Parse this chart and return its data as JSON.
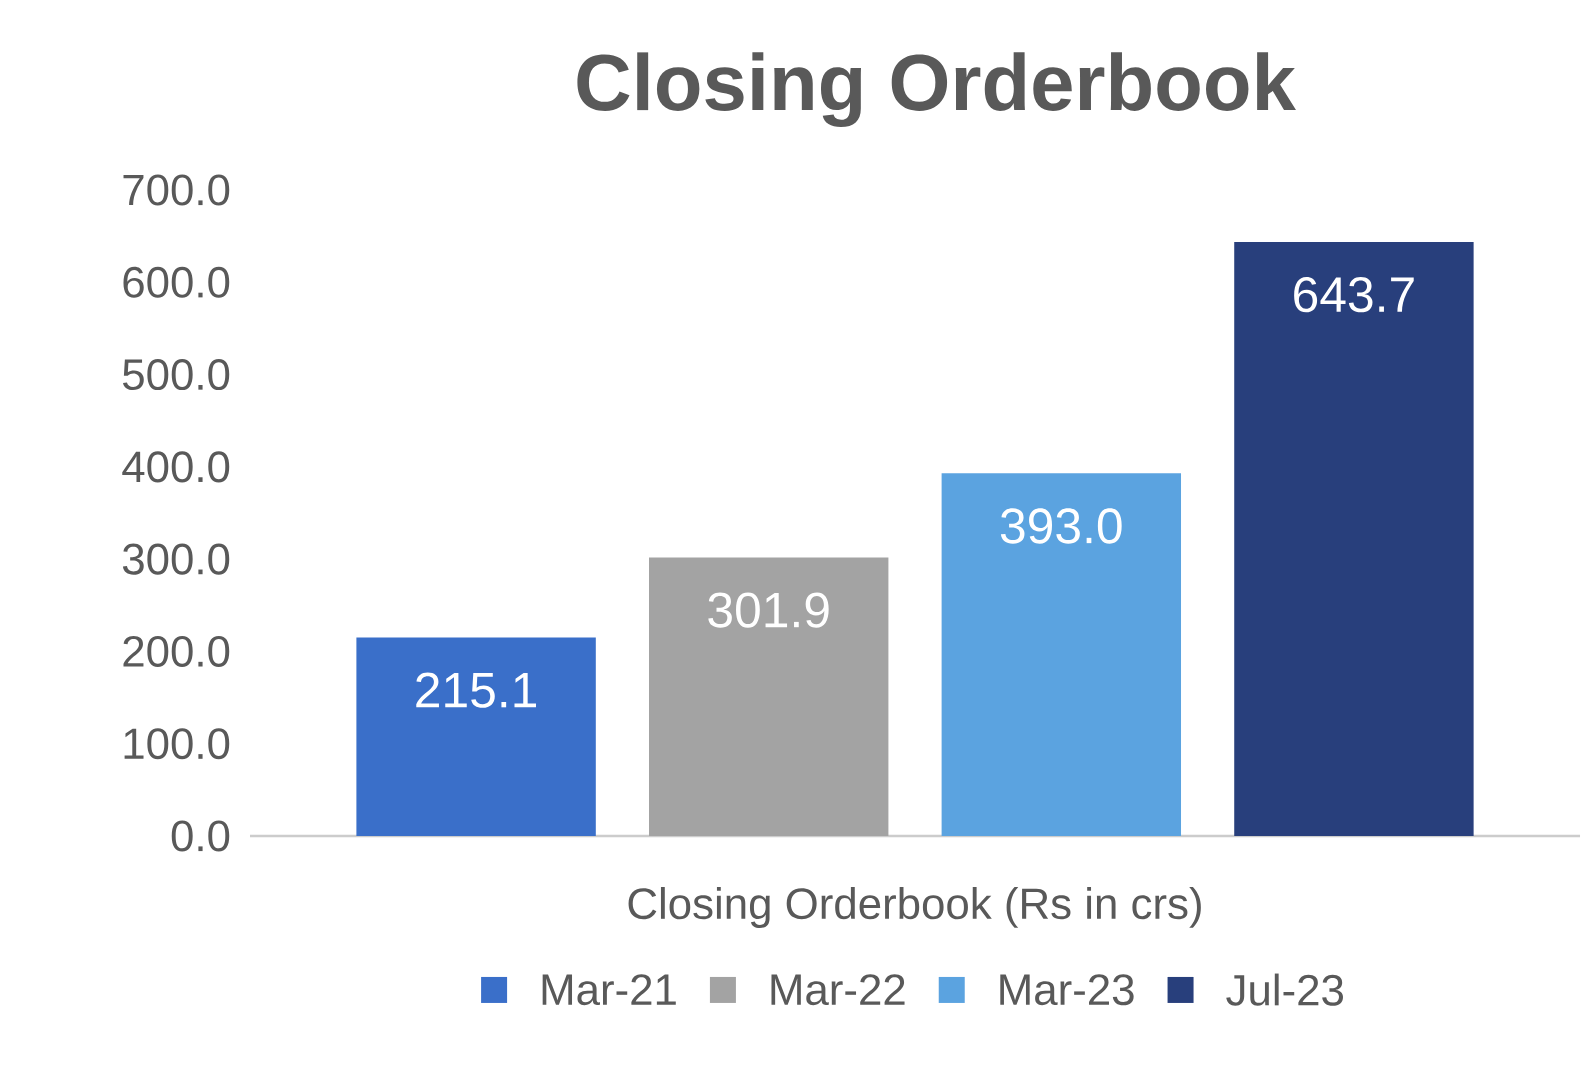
{
  "chart_data": {
    "type": "bar",
    "title": "Closing Orderbook",
    "categories": [
      "Closing Orderbook (Rs in crs)"
    ],
    "series": [
      {
        "name": "Mar-21",
        "color": "#3a6fc9",
        "values": [
          215.1
        ],
        "value_labels": [
          "215.1"
        ]
      },
      {
        "name": "Mar-22",
        "color": "#a3a3a3",
        "values": [
          301.9
        ],
        "value_labels": [
          "301.9"
        ]
      },
      {
        "name": "Mar-23",
        "color": "#5ba3e0",
        "values": [
          393.0
        ],
        "value_labels": [
          "393.0"
        ]
      },
      {
        "name": "Jul-23",
        "color": "#283f7c",
        "values": [
          643.7
        ],
        "value_labels": [
          "643.7"
        ]
      }
    ],
    "ylim": [
      0,
      700
    ],
    "yticks": [
      {
        "value": 0,
        "label": "0.0"
      },
      {
        "value": 100,
        "label": "100.0"
      },
      {
        "value": 200,
        "label": "200.0"
      },
      {
        "value": 300,
        "label": "300.0"
      },
      {
        "value": 400,
        "label": "400.0"
      },
      {
        "value": 500,
        "label": "500.0"
      },
      {
        "value": 600,
        "label": "600.0"
      },
      {
        "value": 700,
        "label": "700.0"
      }
    ],
    "legend": "bottom",
    "grid": false
  }
}
